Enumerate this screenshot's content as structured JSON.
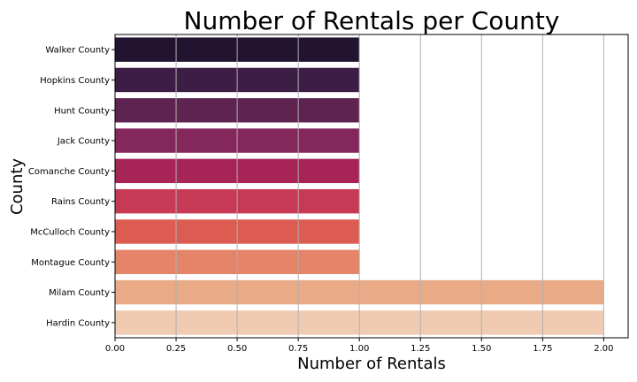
{
  "chart_data": {
    "type": "bar",
    "orientation": "horizontal",
    "title": "Number of Rentals per County",
    "xlabel": "Number of Rentals",
    "ylabel": "County",
    "categories": [
      "Walker County",
      "Hopkins County",
      "Hunt County",
      "Jack County",
      "Comanche County",
      "Rains County",
      "McCulloch County",
      "Montague County",
      "Milam County",
      "Hardin County"
    ],
    "values": [
      1,
      1,
      1,
      1,
      1,
      1,
      1,
      1,
      2,
      2
    ],
    "colors": [
      "#221330",
      "#3d1c45",
      "#5e2350",
      "#84275c",
      "#a72457",
      "#c63a55",
      "#dc5c52",
      "#e48468",
      "#e9aa87",
      "#f0cbb2"
    ],
    "xlim": [
      0,
      2.1
    ],
    "xticks": [
      "0.00",
      "0.25",
      "0.50",
      "0.75",
      "1.00",
      "1.25",
      "1.50",
      "1.75",
      "2.00"
    ],
    "grid": "vertical"
  }
}
